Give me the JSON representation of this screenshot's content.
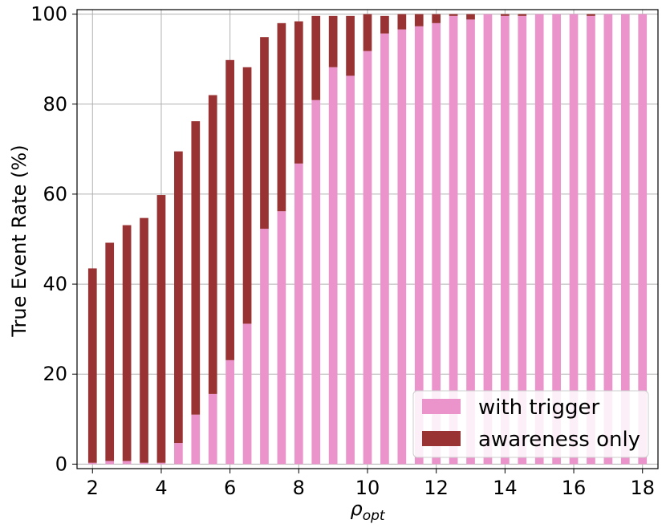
{
  "chart_data": {
    "type": "bar",
    "stacked": true,
    "title": "",
    "xlabel_symbol": "ρ",
    "xlabel_subscript": "opt",
    "ylabel": "True Event Rate (%)",
    "xlim": [
      1.55,
      18.45
    ],
    "ylim": [
      -1,
      101
    ],
    "xticks": [
      2,
      4,
      6,
      8,
      10,
      12,
      14,
      16,
      18
    ],
    "yticks": [
      0,
      20,
      40,
      60,
      80,
      100
    ],
    "grid": true,
    "legend_position": "lower-right",
    "bar_width": 0.25,
    "x": [
      2,
      2.5,
      3,
      3.5,
      4,
      4.5,
      5,
      5.5,
      6,
      6.5,
      7,
      7.5,
      8,
      8.5,
      9,
      9.5,
      10,
      10.5,
      11,
      11.5,
      12,
      12.5,
      13,
      13.5,
      14,
      14.5,
      15,
      15.5,
      16,
      16.5,
      17,
      17.5,
      18
    ],
    "series": [
      {
        "name": "with trigger",
        "color": "#ea94cb",
        "values": [
          0.3,
          0.7,
          0.7,
          0.3,
          0.3,
          4.7,
          11,
          15.6,
          23.1,
          31.2,
          52.3,
          56.2,
          66.8,
          80.9,
          88.2,
          86.3,
          91.8,
          95.7,
          96.6,
          97.3,
          98.0,
          99.6,
          98.8,
          100,
          99.6,
          99.6,
          100,
          100,
          100,
          99.6,
          100,
          100,
          100
        ]
      },
      {
        "name": "awareness only",
        "color": "#993333",
        "values": [
          43.2,
          48.5,
          52.4,
          54.4,
          59.5,
          64.8,
          65.2,
          66.4,
          66.7,
          57.0,
          42.6,
          41.8,
          31.6,
          18.7,
          11.4,
          13.3,
          8.2,
          3.9,
          3.4,
          2.7,
          2.0,
          0.4,
          1.2,
          0,
          0.4,
          0.4,
          0,
          0,
          0,
          0.4,
          0,
          0,
          0
        ]
      }
    ]
  }
}
